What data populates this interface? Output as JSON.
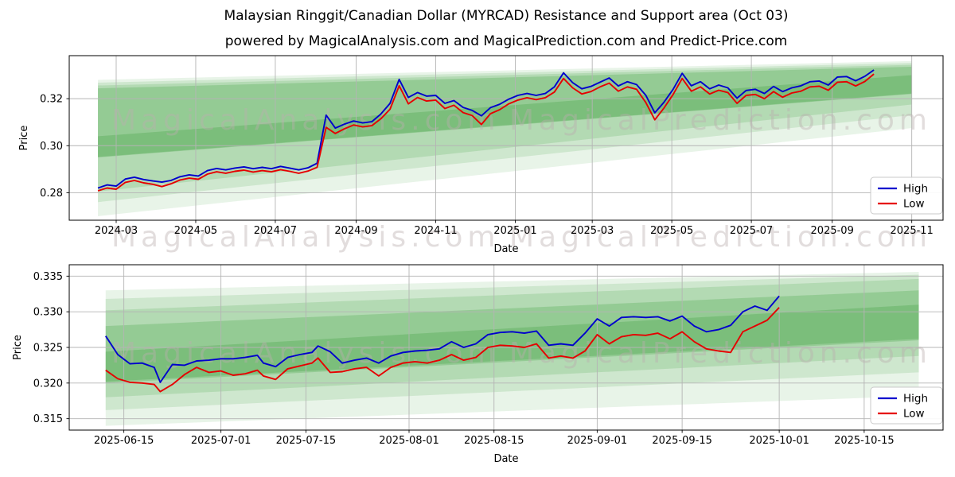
{
  "figure": {
    "title": "Malaysian Ringgit/Canadian Dollar (MYRCAD) Resistance and Support area (Oct 03)",
    "subtitle": "powered by MagicalAnalysis.com and MagicalPrediction.com and Predict-Price.com",
    "watermark_left": "MagicalAnalysis.com",
    "watermark_right": "MagicalPrediction.com",
    "colors": {
      "high_line": "#0000cd",
      "low_line": "#e60000",
      "band_green": "#008000",
      "grid": "#b4b4b4",
      "frame": "#000000",
      "watermark": "#b9aeae",
      "legend_border": "#c9c9c9",
      "text": "#000000"
    }
  },
  "chart_data": [
    {
      "type": "line",
      "panel": "top",
      "xlabel": "Date",
      "ylabel": "Price",
      "grid": true,
      "legend": {
        "position": "lower right",
        "entries": [
          {
            "label": "High",
            "color": "#0000cd"
          },
          {
            "label": "Low",
            "color": "#e60000"
          }
        ]
      },
      "x_domain": [
        "2024-01-25",
        "2025-11-25"
      ],
      "y_domain": [
        0.2683,
        0.3383
      ],
      "x_ticks": [
        {
          "date": "2024-03-01",
          "label": "2024-03"
        },
        {
          "date": "2024-05-01",
          "label": "2024-05"
        },
        {
          "date": "2024-07-01",
          "label": "2024-07"
        },
        {
          "date": "2024-09-01",
          "label": "2024-09"
        },
        {
          "date": "2024-11-01",
          "label": "2024-11"
        },
        {
          "date": "2025-01-01",
          "label": "2025-01"
        },
        {
          "date": "2025-03-01",
          "label": "2025-03"
        },
        {
          "date": "2025-05-01",
          "label": "2025-05"
        },
        {
          "date": "2025-07-01",
          "label": "2025-07"
        },
        {
          "date": "2025-09-01",
          "label": "2025-09"
        },
        {
          "date": "2025-11-01",
          "label": "2025-11"
        }
      ],
      "y_ticks": [
        {
          "value": 0.28,
          "label": "0.28"
        },
        {
          "value": 0.3,
          "label": "0.30"
        },
        {
          "value": 0.32,
          "label": "0.32"
        }
      ],
      "dates": [
        "2024-02-16",
        "2024-02-23",
        "2024-03-01",
        "2024-03-08",
        "2024-03-15",
        "2024-03-22",
        "2024-03-29",
        "2024-04-05",
        "2024-04-12",
        "2024-04-19",
        "2024-04-26",
        "2024-05-03",
        "2024-05-10",
        "2024-05-17",
        "2024-05-24",
        "2024-05-31",
        "2024-06-07",
        "2024-06-14",
        "2024-06-21",
        "2024-06-28",
        "2024-07-05",
        "2024-07-12",
        "2024-07-19",
        "2024-07-26",
        "2024-08-02",
        "2024-08-09",
        "2024-08-16",
        "2024-08-23",
        "2024-08-30",
        "2024-09-06",
        "2024-09-13",
        "2024-09-20",
        "2024-09-27",
        "2024-10-04",
        "2024-10-11",
        "2024-10-18",
        "2024-10-25",
        "2024-11-01",
        "2024-11-08",
        "2024-11-15",
        "2024-11-22",
        "2024-11-29",
        "2024-12-06",
        "2024-12-13",
        "2024-12-20",
        "2024-12-27",
        "2025-01-03",
        "2025-01-10",
        "2025-01-17",
        "2025-01-24",
        "2025-01-31",
        "2025-02-07",
        "2025-02-14",
        "2025-02-21",
        "2025-02-28",
        "2025-03-07",
        "2025-03-14",
        "2025-03-21",
        "2025-03-28",
        "2025-04-04",
        "2025-04-11",
        "2025-04-18",
        "2025-04-25",
        "2025-05-02",
        "2025-05-09",
        "2025-05-16",
        "2025-05-23",
        "2025-05-30",
        "2025-06-06",
        "2025-06-13",
        "2025-06-20",
        "2025-06-27",
        "2025-07-04",
        "2025-07-11",
        "2025-07-18",
        "2025-07-25",
        "2025-08-01",
        "2025-08-08",
        "2025-08-15",
        "2025-08-22",
        "2025-08-29",
        "2025-09-05",
        "2025-09-12",
        "2025-09-19",
        "2025-09-26",
        "2025-10-03"
      ],
      "series": [
        {
          "name": "High",
          "color": "#0000cd",
          "values": [
            0.282,
            0.2833,
            0.2828,
            0.2858,
            0.2866,
            0.2856,
            0.285,
            0.2845,
            0.2852,
            0.2868,
            0.2876,
            0.2871,
            0.2894,
            0.2903,
            0.2897,
            0.2905,
            0.291,
            0.2902,
            0.2908,
            0.2902,
            0.2912,
            0.2905,
            0.2897,
            0.2906,
            0.2925,
            0.313,
            0.3075,
            0.3092,
            0.3105,
            0.3097,
            0.3102,
            0.3135,
            0.318,
            0.3282,
            0.3205,
            0.3226,
            0.3211,
            0.3214,
            0.318,
            0.3192,
            0.3163,
            0.315,
            0.3127,
            0.3162,
            0.3176,
            0.3198,
            0.3214,
            0.3222,
            0.3214,
            0.3222,
            0.325,
            0.331,
            0.3268,
            0.3242,
            0.3252,
            0.327,
            0.3288,
            0.3254,
            0.3272,
            0.326,
            0.3215,
            0.314,
            0.3185,
            0.324,
            0.3308,
            0.3255,
            0.3272,
            0.3242,
            0.3258,
            0.3246,
            0.3202,
            0.3235,
            0.324,
            0.3222,
            0.3252,
            0.323,
            0.3246,
            0.3255,
            0.3272,
            0.3275,
            0.3258,
            0.3292,
            0.3294,
            0.3276,
            0.3295,
            0.3322
          ]
        },
        {
          "name": "Low",
          "color": "#e60000",
          "values": [
            0.2808,
            0.282,
            0.2815,
            0.2844,
            0.2852,
            0.2842,
            0.2836,
            0.2826,
            0.2838,
            0.2854,
            0.2862,
            0.2857,
            0.2879,
            0.2889,
            0.2883,
            0.2891,
            0.2896,
            0.2888,
            0.2894,
            0.2889,
            0.2898,
            0.2891,
            0.2883,
            0.2892,
            0.2908,
            0.3078,
            0.3052,
            0.3072,
            0.3088,
            0.308,
            0.3085,
            0.3115,
            0.3155,
            0.3255,
            0.3178,
            0.3205,
            0.319,
            0.3194,
            0.3158,
            0.3172,
            0.3141,
            0.3128,
            0.309,
            0.3136,
            0.3153,
            0.3178,
            0.3194,
            0.3204,
            0.3196,
            0.3204,
            0.3228,
            0.3286,
            0.3246,
            0.322,
            0.323,
            0.325,
            0.3266,
            0.3232,
            0.325,
            0.324,
            0.3184,
            0.311,
            0.316,
            0.3218,
            0.3286,
            0.3232,
            0.325,
            0.322,
            0.3236,
            0.3226,
            0.318,
            0.3214,
            0.3218,
            0.32,
            0.323,
            0.3206,
            0.3224,
            0.3232,
            0.325,
            0.3253,
            0.3236,
            0.327,
            0.3272,
            0.3254,
            0.3273,
            0.3305
          ]
        }
      ],
      "bands": [
        {
          "x0": "2024-02-16",
          "x1": "2025-11-01",
          "y_left": [
            0.27,
            0.328
          ],
          "y_right": [
            0.3075,
            0.336
          ],
          "alpha": 0.09
        },
        {
          "x0": "2024-02-16",
          "x1": "2025-11-01",
          "y_left": [
            0.276,
            0.3268
          ],
          "y_right": [
            0.313,
            0.3352
          ],
          "alpha": 0.11
        },
        {
          "x0": "2024-02-16",
          "x1": "2025-11-01",
          "y_left": [
            0.2805,
            0.3256
          ],
          "y_right": [
            0.3175,
            0.3344
          ],
          "alpha": 0.13
        },
        {
          "x0": "2024-02-16",
          "x1": "2025-11-01",
          "y_left": [
            0.295,
            0.3244
          ],
          "y_right": [
            0.322,
            0.3336
          ],
          "alpha": 0.17
        },
        {
          "x0": "2024-02-16",
          "x1": "2025-11-01",
          "y_left": [
            0.2952,
            0.304
          ],
          "y_right": [
            0.3222,
            0.33
          ],
          "alpha": 0.17
        }
      ]
    },
    {
      "type": "line",
      "panel": "bottom",
      "xlabel": "Date",
      "ylabel": "Price",
      "grid": true,
      "legend": {
        "position": "lower right",
        "entries": [
          {
            "label": "High",
            "color": "#0000cd"
          },
          {
            "label": "Low",
            "color": "#e60000"
          }
        ]
      },
      "x_domain": [
        "2025-06-06",
        "2025-10-28"
      ],
      "y_domain": [
        0.3134,
        0.3366
      ],
      "x_ticks": [
        {
          "date": "2025-06-15",
          "label": "2025-06-15"
        },
        {
          "date": "2025-07-01",
          "label": "2025-07-01"
        },
        {
          "date": "2025-07-15",
          "label": "2025-07-15"
        },
        {
          "date": "2025-08-01",
          "label": "2025-08-01"
        },
        {
          "date": "2025-08-15",
          "label": "2025-08-15"
        },
        {
          "date": "2025-09-01",
          "label": "2025-09-01"
        },
        {
          "date": "2025-09-15",
          "label": "2025-09-15"
        },
        {
          "date": "2025-10-01",
          "label": "2025-10-01"
        },
        {
          "date": "2025-10-15",
          "label": "2025-10-15"
        }
      ],
      "y_ticks": [
        {
          "value": 0.315,
          "label": "0.315"
        },
        {
          "value": 0.32,
          "label": "0.320"
        },
        {
          "value": 0.325,
          "label": "0.325"
        },
        {
          "value": 0.33,
          "label": "0.330"
        },
        {
          "value": 0.335,
          "label": "0.335"
        }
      ],
      "dates": [
        "2025-06-12",
        "2025-06-14",
        "2025-06-16",
        "2025-06-18",
        "2025-06-20",
        "2025-06-21",
        "2025-06-23",
        "2025-06-25",
        "2025-06-27",
        "2025-06-29",
        "2025-07-01",
        "2025-07-03",
        "2025-07-05",
        "2025-07-07",
        "2025-07-08",
        "2025-07-10",
        "2025-07-12",
        "2025-07-14",
        "2025-07-16",
        "2025-07-17",
        "2025-07-19",
        "2025-07-21",
        "2025-07-23",
        "2025-07-25",
        "2025-07-27",
        "2025-07-29",
        "2025-07-31",
        "2025-08-02",
        "2025-08-04",
        "2025-08-06",
        "2025-08-08",
        "2025-08-10",
        "2025-08-12",
        "2025-08-14",
        "2025-08-16",
        "2025-08-18",
        "2025-08-20",
        "2025-08-22",
        "2025-08-24",
        "2025-08-26",
        "2025-08-28",
        "2025-08-30",
        "2025-09-01",
        "2025-09-03",
        "2025-09-05",
        "2025-09-07",
        "2025-09-09",
        "2025-09-11",
        "2025-09-13",
        "2025-09-15",
        "2025-09-17",
        "2025-09-19",
        "2025-09-21",
        "2025-09-23",
        "2025-09-25",
        "2025-09-27",
        "2025-09-29",
        "2025-10-01"
      ],
      "series": [
        {
          "name": "High",
          "color": "#0000cd",
          "values": [
            0.3266,
            0.324,
            0.3227,
            0.3228,
            0.3222,
            0.3201,
            0.3226,
            0.3225,
            0.3231,
            0.3232,
            0.3234,
            0.3234,
            0.3236,
            0.3239,
            0.3228,
            0.3223,
            0.3236,
            0.324,
            0.3243,
            0.3252,
            0.3244,
            0.3228,
            0.3232,
            0.3235,
            0.3228,
            0.3238,
            0.3243,
            0.3245,
            0.3246,
            0.3248,
            0.3258,
            0.325,
            0.3255,
            0.3268,
            0.3271,
            0.3272,
            0.327,
            0.3273,
            0.3253,
            0.3255,
            0.3253,
            0.327,
            0.329,
            0.328,
            0.3292,
            0.3293,
            0.3292,
            0.3293,
            0.3287,
            0.3294,
            0.328,
            0.3272,
            0.3275,
            0.3281,
            0.33,
            0.3308,
            0.3302,
            0.3322
          ]
        },
        {
          "name": "Low",
          "color": "#e60000",
          "values": [
            0.3218,
            0.3206,
            0.3201,
            0.32,
            0.3198,
            0.3188,
            0.3198,
            0.3212,
            0.3222,
            0.3215,
            0.3217,
            0.3211,
            0.3213,
            0.3218,
            0.321,
            0.3205,
            0.322,
            0.3224,
            0.3228,
            0.3235,
            0.3215,
            0.3216,
            0.322,
            0.3222,
            0.321,
            0.3222,
            0.3228,
            0.323,
            0.3228,
            0.3232,
            0.324,
            0.3232,
            0.3236,
            0.325,
            0.3253,
            0.3252,
            0.325,
            0.3255,
            0.3235,
            0.3238,
            0.3235,
            0.3245,
            0.3268,
            0.3255,
            0.3265,
            0.3268,
            0.3267,
            0.327,
            0.3262,
            0.3272,
            0.3258,
            0.3248,
            0.3245,
            0.3243,
            0.3272,
            0.328,
            0.3288,
            0.3306
          ]
        }
      ],
      "bands": [
        {
          "x0": "2025-06-12",
          "x1": "2025-10-24",
          "y_left": [
            0.314,
            0.333
          ],
          "y_right": [
            0.3182,
            0.3356
          ],
          "alpha": 0.09
        },
        {
          "x0": "2025-06-12",
          "x1": "2025-10-24",
          "y_left": [
            0.3162,
            0.3318
          ],
          "y_right": [
            0.3215,
            0.3352
          ],
          "alpha": 0.11
        },
        {
          "x0": "2025-06-12",
          "x1": "2025-10-24",
          "y_left": [
            0.318,
            0.3302
          ],
          "y_right": [
            0.3238,
            0.3346
          ],
          "alpha": 0.13
        },
        {
          "x0": "2025-06-12",
          "x1": "2025-10-24",
          "y_left": [
            0.32,
            0.328
          ],
          "y_right": [
            0.326,
            0.333
          ],
          "alpha": 0.17
        },
        {
          "x0": "2025-06-12",
          "x1": "2025-10-24",
          "y_left": [
            0.3202,
            0.3244
          ],
          "y_right": [
            0.3262,
            0.331
          ],
          "alpha": 0.17
        }
      ]
    }
  ]
}
